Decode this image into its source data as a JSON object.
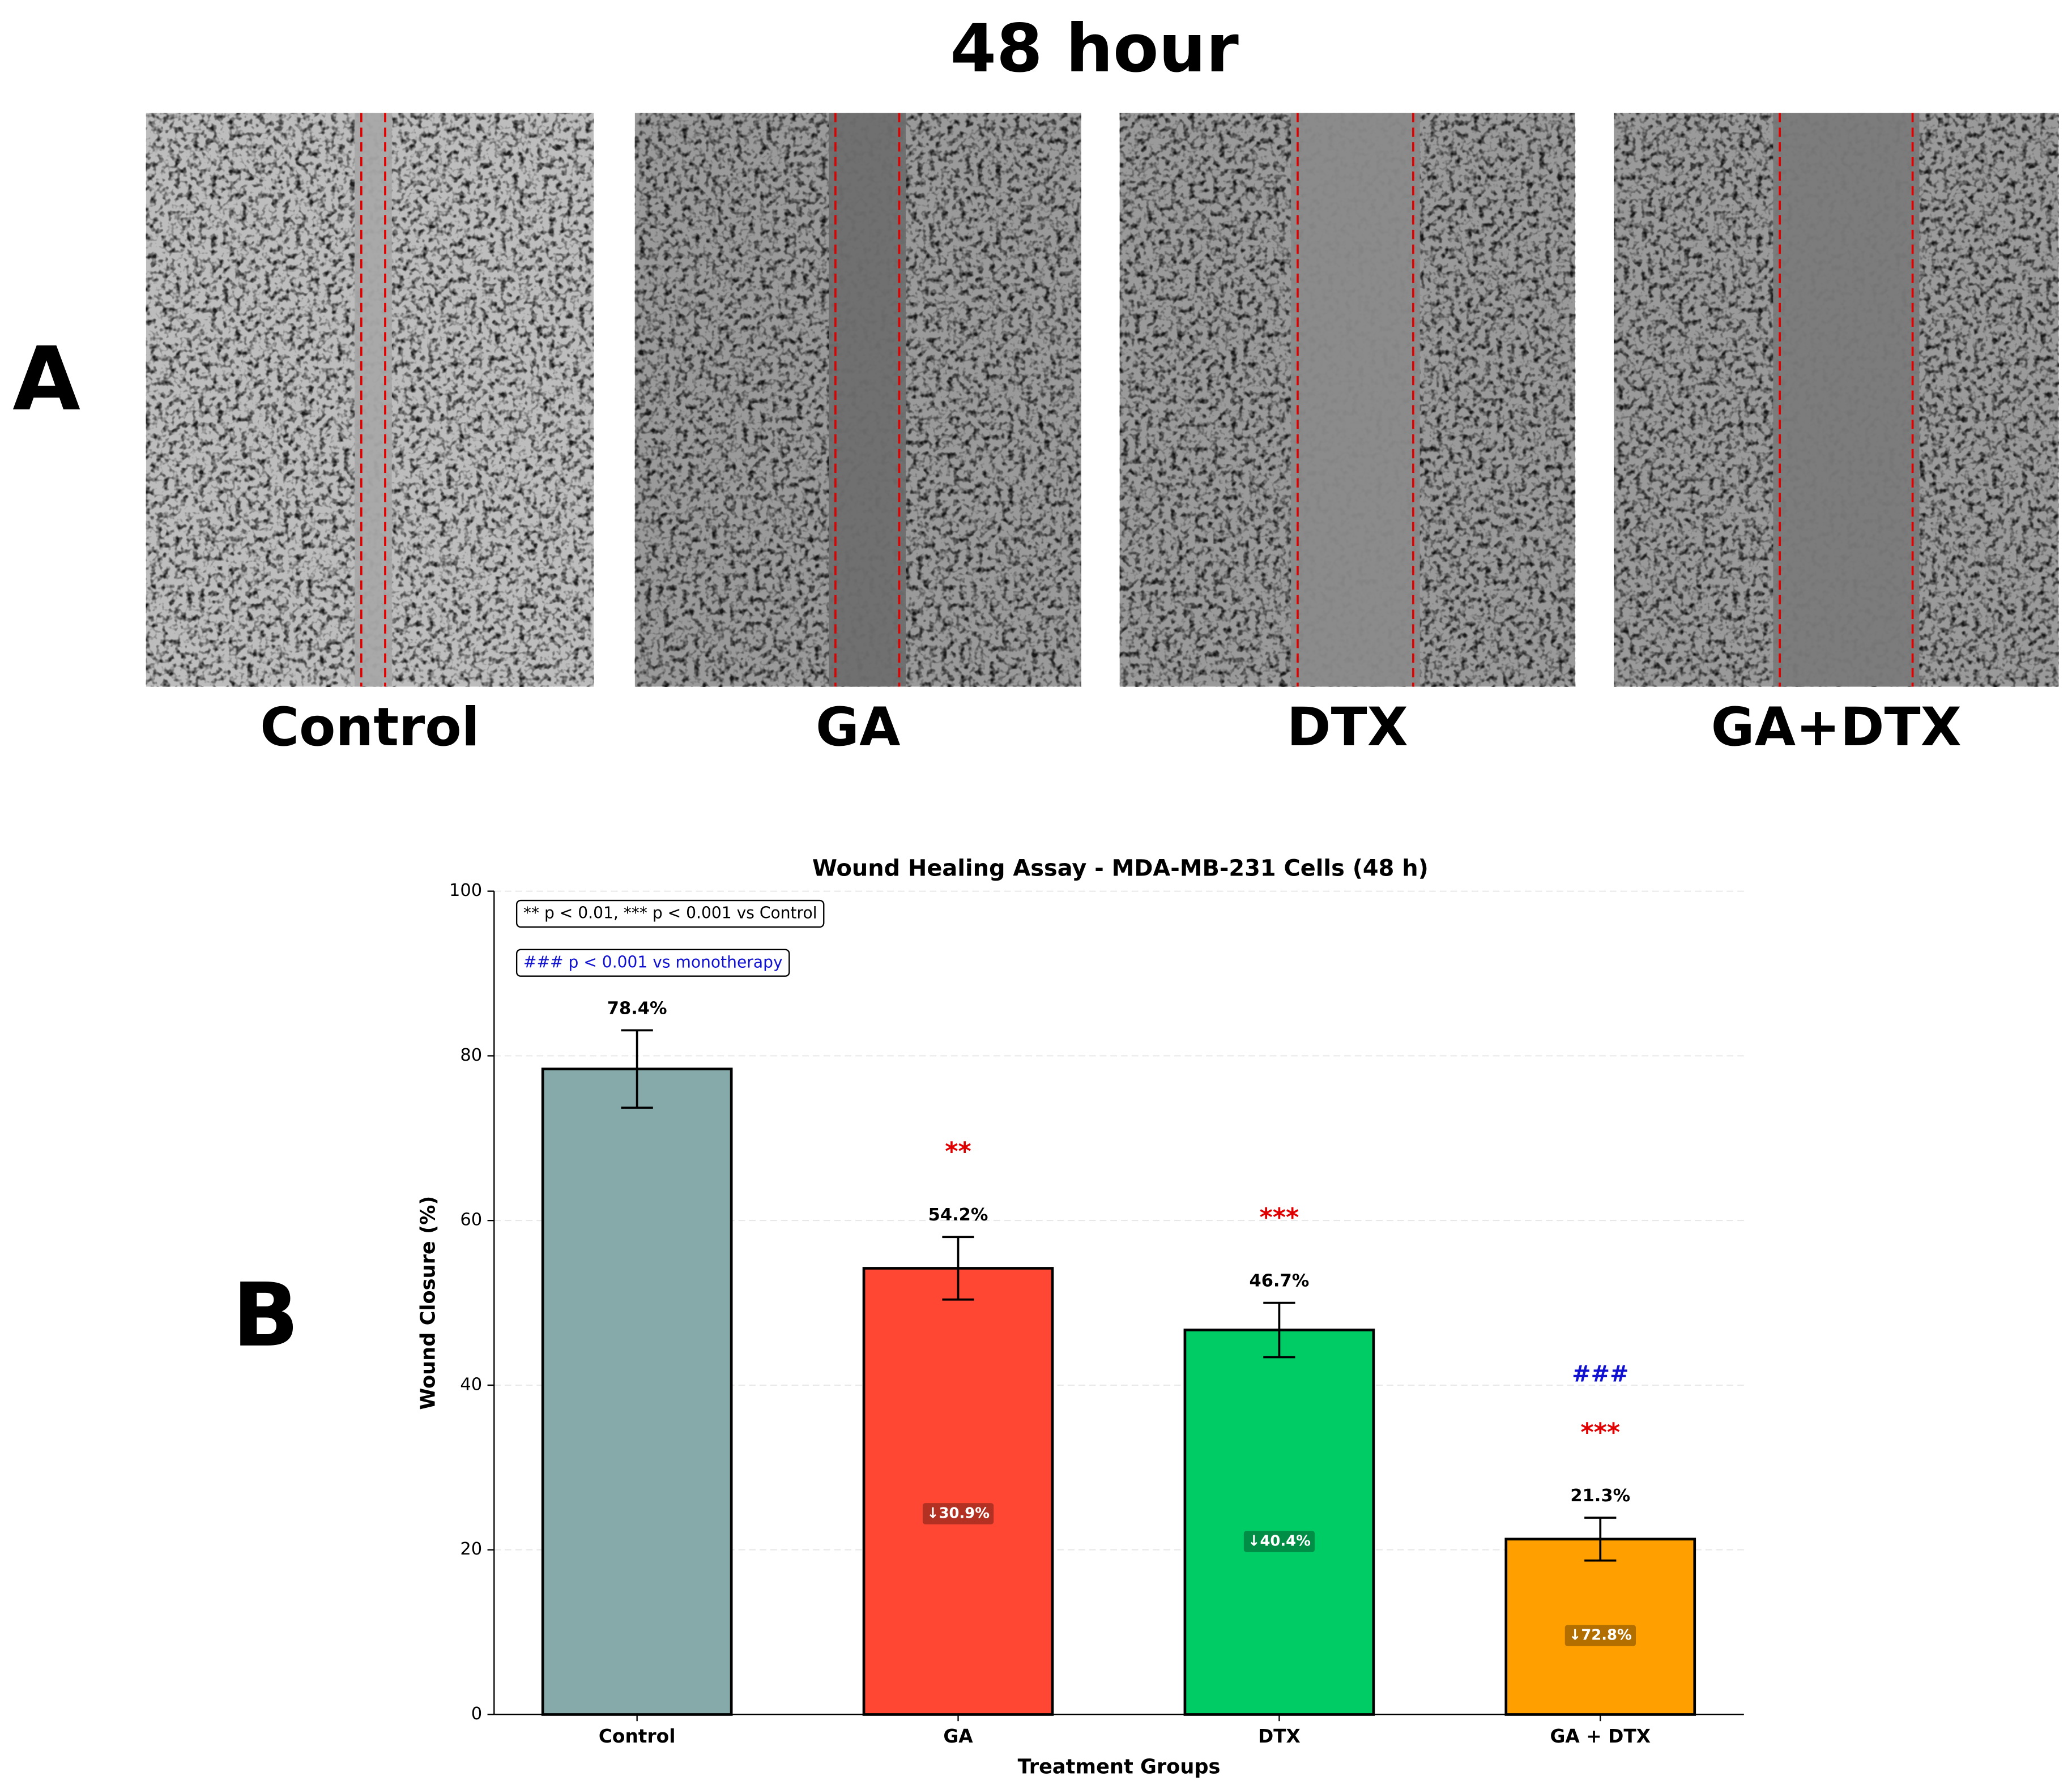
{
  "title": "48 hour",
  "panel_labels": [
    "A",
    "B"
  ],
  "images": [
    "Control",
    "GA",
    "DTX",
    "GA+DTX"
  ],
  "chart_data": {
    "type": "bar",
    "title": "Wound Healing Assay - MDA-MB-231 Cells (48 h)",
    "xlabel": "Treatment Groups",
    "ylabel": "Wound Closure (%)",
    "categories": [
      "Control",
      "GA",
      "DTX",
      "GA + DTX"
    ],
    "values": [
      78.4,
      54.2,
      46.7,
      21.3
    ],
    "value_labels": [
      "78.4%",
      "54.2%",
      "46.7%",
      "21.3%"
    ],
    "errors": [
      4.7,
      3.8,
      3.3,
      2.6
    ],
    "colors": [
      "#85aaa9",
      "#ff4733",
      "#00cc66",
      "#ffa000"
    ],
    "significance": [
      null,
      "**",
      "***",
      "***"
    ],
    "monotherapy_significance": [
      null,
      null,
      null,
      "###"
    ],
    "reduction_labels": [
      null,
      "↓30.9%",
      "↓40.4%",
      "↓72.8%"
    ],
    "notes": [
      "** p < 0.01, *** p < 0.001 vs Control",
      "### p < 0.001 vs monotherapy"
    ],
    "ylim": [
      0,
      100
    ],
    "yticks": [
      0,
      20,
      40,
      60,
      80,
      100
    ],
    "grid": true
  }
}
